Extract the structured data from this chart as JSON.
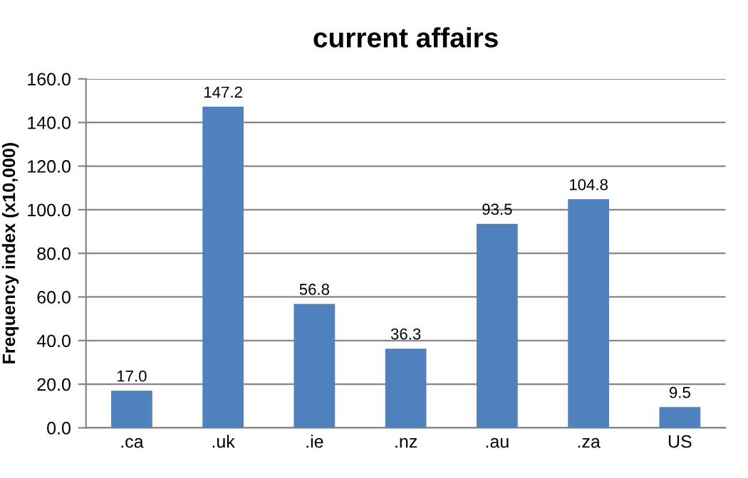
{
  "chart_data": {
    "type": "bar",
    "title": "current affairs",
    "ylabel": "Frequency index (x10,000)",
    "categories": [
      ".ca",
      ".uk",
      ".ie",
      ".nz",
      ".au",
      ".za",
      "US"
    ],
    "values": [
      17.0,
      147.2,
      56.8,
      36.3,
      93.5,
      104.8,
      9.5
    ],
    "value_labels": [
      "17.0",
      "147.2",
      "56.8",
      "36.3",
      "93.5",
      "104.8",
      "9.5"
    ],
    "color": "#4f81bd",
    "ylim": [
      0,
      160
    ],
    "yticks": [
      {
        "value": 0,
        "label": "0.0"
      },
      {
        "value": 20,
        "label": "20.0"
      },
      {
        "value": 40,
        "label": "40.0"
      },
      {
        "value": 60,
        "label": "60.0"
      },
      {
        "value": 80,
        "label": "80.0"
      },
      {
        "value": 100,
        "label": "100.0"
      },
      {
        "value": 120,
        "label": "120.0"
      },
      {
        "value": 140,
        "label": "140.0"
      },
      {
        "value": 160,
        "label": "160.0"
      }
    ],
    "grid": "y"
  }
}
